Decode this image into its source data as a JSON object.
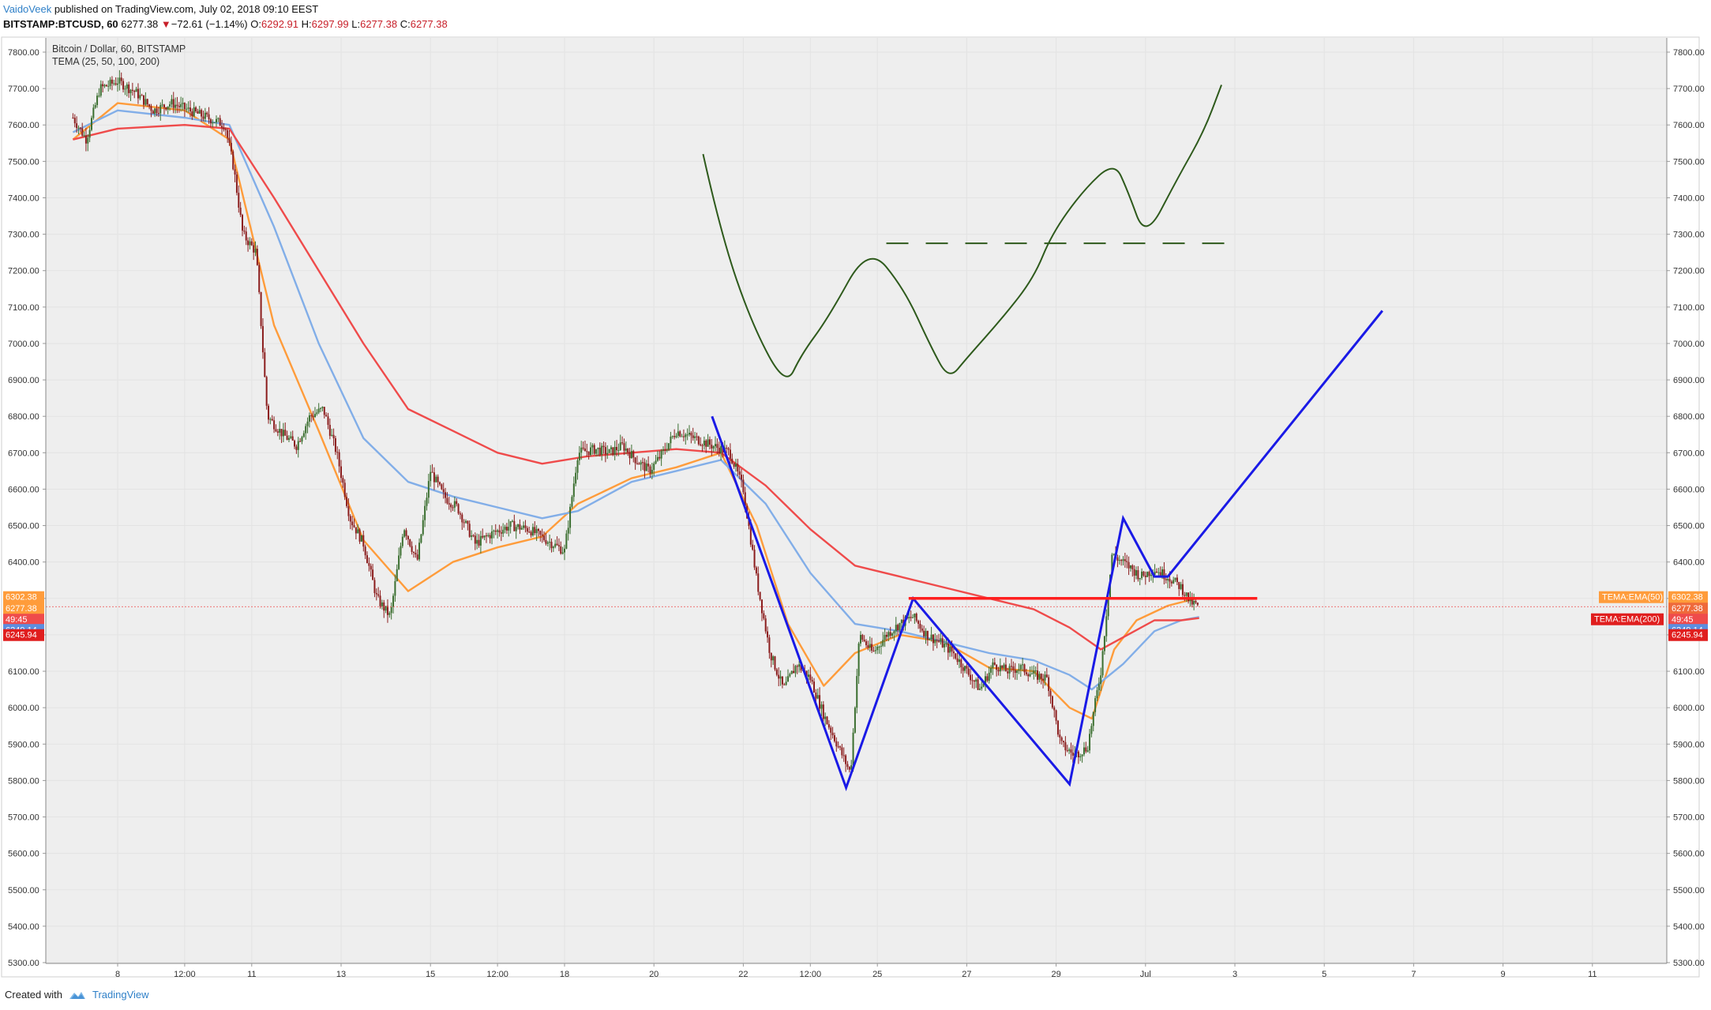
{
  "header": {
    "author": "VaidoVeek",
    "published": "published on TradingView.com, July 02, 2018 09:10 EEST",
    "symbol_line": "BITSTAMP:BTCUSD, 60",
    "last": "6277.38",
    "change_arrow": "▼",
    "change": "−72.61 (−1.14%)",
    "o_label": "O:",
    "o": "6292.91",
    "h_label": "H:",
    "h": "6297.99",
    "l_label": "L:",
    "l": "6277.38",
    "c_label": "C:",
    "c": "6277.38"
  },
  "footer": {
    "created_with": "Created with",
    "brand": "TradingView"
  },
  "colors": {
    "background": "#eeeeee",
    "grid": "#e3e3e3",
    "candle_up": "#3a6e2f",
    "candle_down": "#8b1d1d",
    "tema25": "#ff9c3b",
    "tema50": "#82aee8",
    "tema100": "#ef4b4b",
    "drawing_blue": "#1a1ae6",
    "drawing_green": "#2e5a1c",
    "support_red": "#ff1f1f"
  },
  "chart_data": {
    "type": "candlestick",
    "title": "Bitcoin / Dollar, 60, BITSTAMP",
    "indicator": "TEMA (25, 50, 100, 200)",
    "ylim": [
      5300,
      7800
    ],
    "yticks": [
      "7800.00",
      "7700.00",
      "7600.00",
      "7500.00",
      "7400.00",
      "7300.00",
      "7200.00",
      "7100.00",
      "7000.00",
      "6900.00",
      "6800.00",
      "6700.00",
      "6600.00",
      "6500.00",
      "6400.00",
      "6300.00",
      "6200.00",
      "6100.00",
      "6000.00",
      "5900.00",
      "5800.00",
      "5700.00",
      "5600.00",
      "5500.00",
      "5400.00",
      "5300.00"
    ],
    "xticks": [
      {
        "label": "8",
        "day": 8
      },
      {
        "label": "12:00",
        "day": 9.5
      },
      {
        "label": "11",
        "day": 11
      },
      {
        "label": "13",
        "day": 13
      },
      {
        "label": "15",
        "day": 15
      },
      {
        "label": "12:00",
        "day": 16.5
      },
      {
        "label": "18",
        "day": 18
      },
      {
        "label": "20",
        "day": 20
      },
      {
        "label": "22",
        "day": 22
      },
      {
        "label": "12:00",
        "day": 23.5
      },
      {
        "label": "25",
        "day": 25
      },
      {
        "label": "27",
        "day": 27
      },
      {
        "label": "29",
        "day": 29
      },
      {
        "label": "Jul",
        "day": 31
      },
      {
        "label": "3",
        "day": 33
      },
      {
        "label": "5",
        "day": 35
      },
      {
        "label": "7",
        "day": 37
      },
      {
        "label": "9",
        "day": 39
      },
      {
        "label": "11",
        "day": 41
      }
    ],
    "price_path": [
      [
        7.0,
        7620
      ],
      [
        7.3,
        7560
      ],
      [
        7.6,
        7700
      ],
      [
        8.0,
        7720
      ],
      [
        8.4,
        7690
      ],
      [
        8.8,
        7640
      ],
      [
        9.2,
        7660
      ],
      [
        9.6,
        7640
      ],
      [
        10.0,
        7620
      ],
      [
        10.4,
        7600
      ],
      [
        10.6,
        7480
      ],
      [
        10.8,
        7300
      ],
      [
        11.1,
        7250
      ],
      [
        11.35,
        6800
      ],
      [
        11.7,
        6750
      ],
      [
        12.0,
        6720
      ],
      [
        12.3,
        6800
      ],
      [
        12.6,
        6820
      ],
      [
        12.9,
        6700
      ],
      [
        13.2,
        6520
      ],
      [
        13.5,
        6450
      ],
      [
        13.8,
        6300
      ],
      [
        14.1,
        6250
      ],
      [
        14.4,
        6500
      ],
      [
        14.7,
        6400
      ],
      [
        15.0,
        6650
      ],
      [
        15.3,
        6580
      ],
      [
        15.6,
        6550
      ],
      [
        16.0,
        6450
      ],
      [
        16.4,
        6480
      ],
      [
        16.8,
        6500
      ],
      [
        17.2,
        6490
      ],
      [
        17.6,
        6460
      ],
      [
        18.0,
        6430
      ],
      [
        18.3,
        6700
      ],
      [
        18.7,
        6710
      ],
      [
        19.0,
        6700
      ],
      [
        19.3,
        6720
      ],
      [
        19.6,
        6680
      ],
      [
        19.9,
        6650
      ],
      [
        20.2,
        6700
      ],
      [
        20.5,
        6760
      ],
      [
        20.9,
        6740
      ],
      [
        21.3,
        6720
      ],
      [
        21.7,
        6700
      ],
      [
        22.0,
        6600
      ],
      [
        22.3,
        6350
      ],
      [
        22.6,
        6150
      ],
      [
        22.9,
        6050
      ],
      [
        23.2,
        6120
      ],
      [
        23.5,
        6080
      ],
      [
        23.8,
        5980
      ],
      [
        24.1,
        5900
      ],
      [
        24.4,
        5820
      ],
      [
        24.6,
        6200
      ],
      [
        24.9,
        6150
      ],
      [
        25.2,
        6200
      ],
      [
        25.5,
        6230
      ],
      [
        25.8,
        6250
      ],
      [
        26.1,
        6200
      ],
      [
        26.4,
        6180
      ],
      [
        26.7,
        6150
      ],
      [
        27.0,
        6100
      ],
      [
        27.3,
        6050
      ],
      [
        27.6,
        6120
      ],
      [
        27.9,
        6100
      ],
      [
        28.2,
        6110
      ],
      [
        28.5,
        6090
      ],
      [
        28.8,
        6080
      ],
      [
        29.1,
        5900
      ],
      [
        29.4,
        5870
      ],
      [
        29.7,
        5890
      ],
      [
        30.0,
        6100
      ],
      [
        30.25,
        6420
      ],
      [
        30.6,
        6390
      ],
      [
        30.9,
        6360
      ],
      [
        31.2,
        6380
      ],
      [
        31.5,
        6360
      ],
      [
        31.8,
        6330
      ],
      [
        32.0,
        6290
      ],
      [
        32.2,
        6277
      ]
    ],
    "series": [
      {
        "name": "TEMA:EMA(50)",
        "last_value": 6302.38,
        "points": [
          [
            7.0,
            7560
          ],
          [
            8.0,
            7660
          ],
          [
            9.5,
            7640
          ],
          [
            10.5,
            7560
          ],
          [
            11.5,
            7050
          ],
          [
            12.5,
            6760
          ],
          [
            13.5,
            6460
          ],
          [
            14.5,
            6320
          ],
          [
            15.5,
            6400
          ],
          [
            16.5,
            6440
          ],
          [
            17.5,
            6470
          ],
          [
            18.3,
            6560
          ],
          [
            19.5,
            6630
          ],
          [
            20.5,
            6660
          ],
          [
            21.5,
            6700
          ],
          [
            22.3,
            6500
          ],
          [
            23.0,
            6230
          ],
          [
            23.8,
            6060
          ],
          [
            24.5,
            6150
          ],
          [
            25.5,
            6200
          ],
          [
            26.5,
            6180
          ],
          [
            27.5,
            6110
          ],
          [
            28.5,
            6100
          ],
          [
            29.3,
            6000
          ],
          [
            29.8,
            5970
          ],
          [
            30.3,
            6160
          ],
          [
            30.8,
            6240
          ],
          [
            31.5,
            6280
          ],
          [
            32.2,
            6302
          ]
        ]
      },
      {
        "name": "",
        "last_value": 6249.14,
        "points": [
          [
            7.0,
            7580
          ],
          [
            8.0,
            7640
          ],
          [
            9.5,
            7620
          ],
          [
            10.5,
            7600
          ],
          [
            11.5,
            7320
          ],
          [
            12.5,
            7000
          ],
          [
            13.5,
            6740
          ],
          [
            14.5,
            6620
          ],
          [
            15.5,
            6580
          ],
          [
            16.5,
            6550
          ],
          [
            17.5,
            6520
          ],
          [
            18.3,
            6540
          ],
          [
            19.5,
            6620
          ],
          [
            20.5,
            6650
          ],
          [
            21.5,
            6680
          ],
          [
            22.5,
            6560
          ],
          [
            23.5,
            6370
          ],
          [
            24.5,
            6230
          ],
          [
            25.5,
            6210
          ],
          [
            26.5,
            6180
          ],
          [
            27.5,
            6150
          ],
          [
            28.5,
            6130
          ],
          [
            29.3,
            6090
          ],
          [
            29.8,
            6050
          ],
          [
            30.5,
            6120
          ],
          [
            31.2,
            6210
          ],
          [
            31.8,
            6240
          ],
          [
            32.2,
            6249
          ]
        ]
      },
      {
        "name": "TEMA:EMA(200)",
        "last_value": 6245.94,
        "points": [
          [
            7.0,
            7560
          ],
          [
            8.0,
            7590
          ],
          [
            9.5,
            7600
          ],
          [
            10.5,
            7590
          ],
          [
            11.5,
            7400
          ],
          [
            12.5,
            7200
          ],
          [
            13.5,
            7000
          ],
          [
            14.5,
            6820
          ],
          [
            15.5,
            6760
          ],
          [
            16.5,
            6700
          ],
          [
            17.5,
            6670
          ],
          [
            18.5,
            6690
          ],
          [
            19.5,
            6700
          ],
          [
            20.5,
            6710
          ],
          [
            21.5,
            6700
          ],
          [
            22.5,
            6610
          ],
          [
            23.5,
            6490
          ],
          [
            24.5,
            6390
          ],
          [
            25.5,
            6360
          ],
          [
            26.5,
            6330
          ],
          [
            27.5,
            6300
          ],
          [
            28.5,
            6270
          ],
          [
            29.3,
            6220
          ],
          [
            30.0,
            6160
          ],
          [
            30.6,
            6200
          ],
          [
            31.2,
            6240
          ],
          [
            31.8,
            6240
          ],
          [
            32.2,
            6246
          ]
        ]
      }
    ],
    "price_labels": [
      {
        "text": "6302.38",
        "color": "#ff9c3b"
      },
      {
        "text": "6277.38",
        "color": "#ff9c3b"
      },
      {
        "text": "49:45",
        "color": "#ef4b4b"
      },
      {
        "text": "6249.14",
        "color": "#5b8ee0"
      },
      {
        "text": "6245.94",
        "color": "#e01e1e"
      }
    ],
    "right_price_labels": [
      {
        "text": "6302.38",
        "color": "#ff9c3b"
      },
      {
        "text": "6277.38",
        "color": "#ef6a3b"
      },
      {
        "text": "49:45",
        "color": "#ef4b4b"
      },
      {
        "text": "6249.14",
        "color": "#5b8ee0"
      },
      {
        "text": "6245.94",
        "color": "#e01e1e"
      }
    ],
    "series_tags": [
      {
        "text": "TEMA:EMA(50)",
        "value": 6302.38,
        "color": "#ff9c3b"
      },
      {
        "text": "TEMA:EMA(200)",
        "value": 6245.94,
        "color": "#e01e1e"
      }
    ],
    "current_price": 6277.38,
    "drawings": {
      "blue_pattern": [
        [
          21.3,
          6800
        ],
        [
          24.3,
          5780
        ],
        [
          25.8,
          6300
        ],
        [
          29.3,
          5790
        ],
        [
          30.5,
          6520
        ],
        [
          31.2,
          6360
        ],
        [
          31.5,
          6360
        ],
        [
          36.3,
          7090
        ]
      ],
      "support_line": {
        "x1": 25.7,
        "x2": 33.5,
        "y": 6300
      },
      "sketch_curve": [
        [
          21.1,
          7520
        ],
        [
          21.5,
          7300
        ],
        [
          22.2,
          7050
        ],
        [
          22.95,
          6880
        ],
        [
          23.3,
          6970
        ],
        [
          23.9,
          7070
        ],
        [
          24.8,
          7270
        ],
        [
          25.6,
          7150
        ],
        [
          26.2,
          6990
        ],
        [
          26.6,
          6900
        ],
        [
          27.0,
          6960
        ],
        [
          27.8,
          7070
        ],
        [
          28.5,
          7180
        ],
        [
          28.9,
          7300
        ],
        [
          29.6,
          7420
        ],
        [
          30.3,
          7500
        ],
        [
          30.6,
          7420
        ],
        [
          31.0,
          7285
        ],
        [
          31.7,
          7450
        ],
        [
          32.3,
          7580
        ],
        [
          32.7,
          7710
        ]
      ],
      "dashed_neckline": {
        "x1": 25.2,
        "x2": 33.0,
        "y": 7275
      }
    }
  }
}
